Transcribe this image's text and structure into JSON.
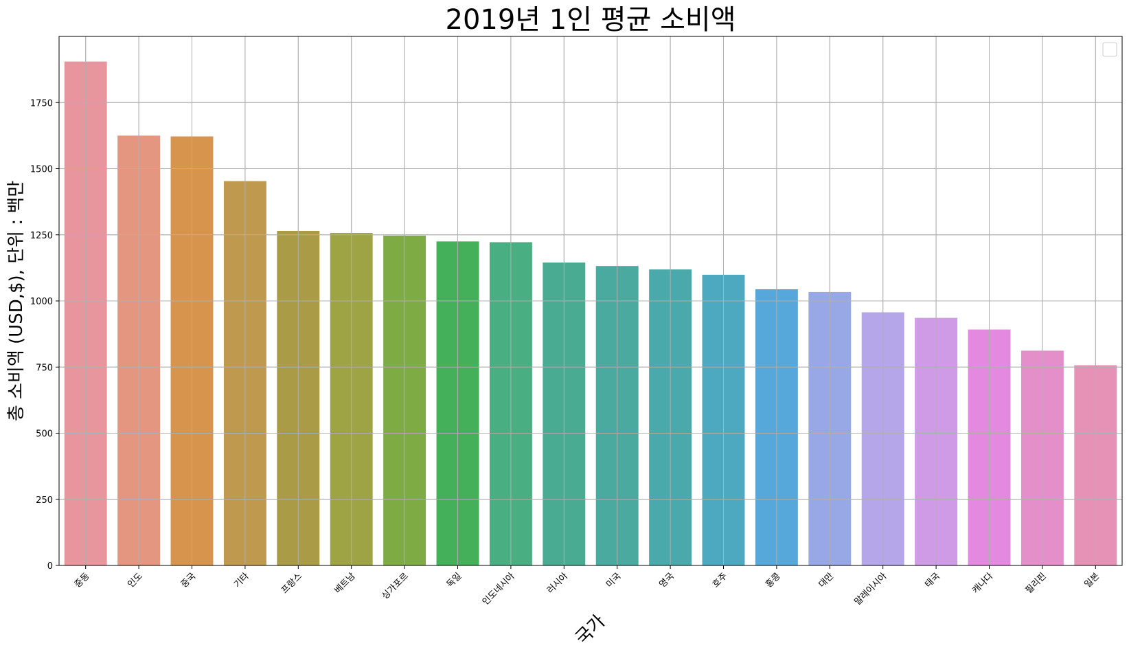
{
  "chart_data": {
    "type": "bar",
    "title": "2019년 1인 평균 소비액",
    "xlabel": "국가",
    "ylabel": "총 소비액 (USD,$), 단위 : 백만",
    "categories": [
      "중동",
      "인도",
      "중국",
      "기타",
      "프랑스",
      "베트남",
      "싱가포르",
      "독일",
      "인도네시아",
      "러시아",
      "미국",
      "영국",
      "호주",
      "홍콩",
      "대만",
      "말레이시아",
      "태국",
      "캐나다",
      "필리핀",
      "일본"
    ],
    "values": [
      1905,
      1625,
      1622,
      1453,
      1265,
      1257,
      1247,
      1225,
      1222,
      1145,
      1132,
      1119,
      1099,
      1044,
      1034,
      957,
      936,
      892,
      812,
      757
    ],
    "colors": [
      "#e8969e",
      "#e59681",
      "#d6944c",
      "#bf9a4e",
      "#aa9c46",
      "#9ea444",
      "#7eab44",
      "#44b05a",
      "#49ae82",
      "#4aab93",
      "#4aaa9f",
      "#4aa9aa",
      "#4ca9bf",
      "#56a8da",
      "#98a8e6",
      "#b4a6e8",
      "#cf9ae6",
      "#e38ae0",
      "#e58fca",
      "#e592b6"
    ],
    "ylim": [
      0,
      2000
    ],
    "yticks": [
      0,
      250,
      500,
      750,
      1000,
      1250,
      1500,
      1750
    ],
    "ytick_labels": [
      "0",
      "250",
      "500",
      "750",
      "1000",
      "1250",
      "1500",
      "1750"
    ],
    "grid": true,
    "legend": "top-right (empty)"
  }
}
